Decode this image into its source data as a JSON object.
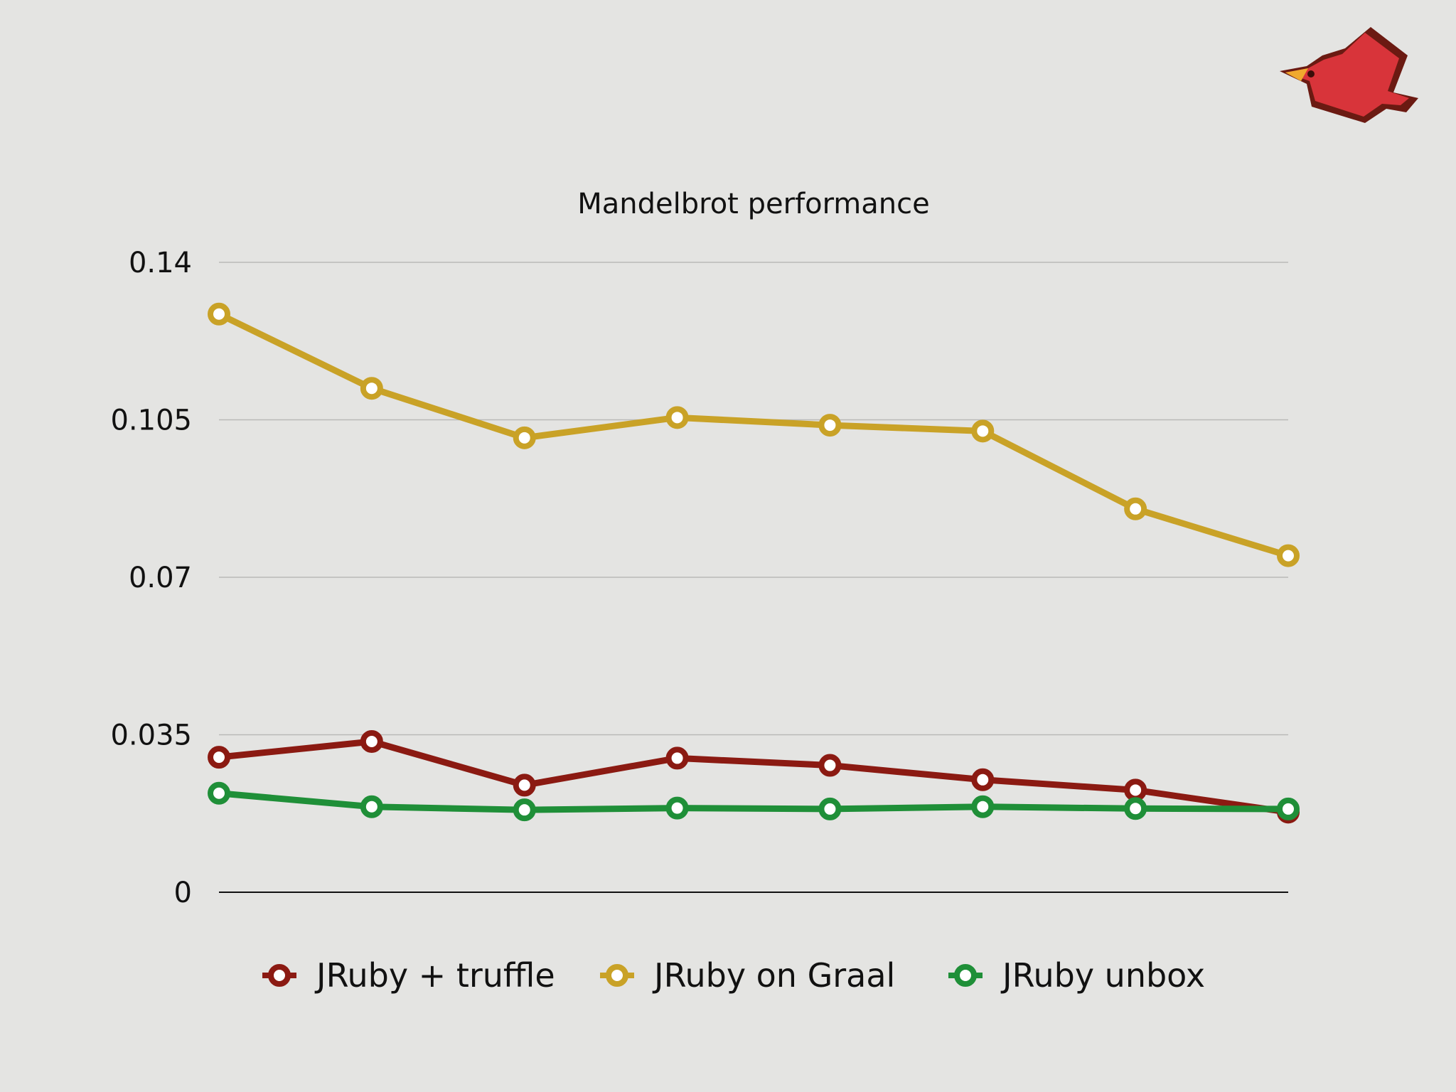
{
  "chart_data": {
    "type": "line",
    "title": "Mandelbrot performance",
    "xlabel": "",
    "ylabel": "",
    "ylim": [
      0,
      0.14
    ],
    "yticks": [
      {
        "value": 0.14,
        "label": "0.14"
      },
      {
        "value": 0.105,
        "label": "0.105"
      },
      {
        "value": 0.07,
        "label": "0.07"
      },
      {
        "value": 0.035,
        "label": "0.035"
      },
      {
        "value": 0,
        "label": "0"
      }
    ],
    "x": [
      1,
      2,
      3,
      4,
      5,
      6,
      7,
      8
    ],
    "grid": true,
    "legend_position": "bottom",
    "series": [
      {
        "name": "JRuby + truffle",
        "color": "#8b1a12",
        "values": [
          0.03,
          0.0335,
          0.0238,
          0.0298,
          0.0282,
          0.025,
          0.0227,
          0.0178
        ]
      },
      {
        "name": "JRuby on Graal",
        "color": "#c9a227",
        "values": [
          0.1285,
          0.112,
          0.101,
          0.1055,
          0.1038,
          0.1025,
          0.0852,
          0.0748
        ]
      },
      {
        "name": "JRuby unbox",
        "color": "#1f8f38",
        "values": [
          0.022,
          0.019,
          0.0183,
          0.0187,
          0.0185,
          0.019,
          0.0186,
          0.0185
        ]
      }
    ]
  },
  "logo": {
    "icon": "red-bird-icon",
    "color": "#d8343a"
  }
}
